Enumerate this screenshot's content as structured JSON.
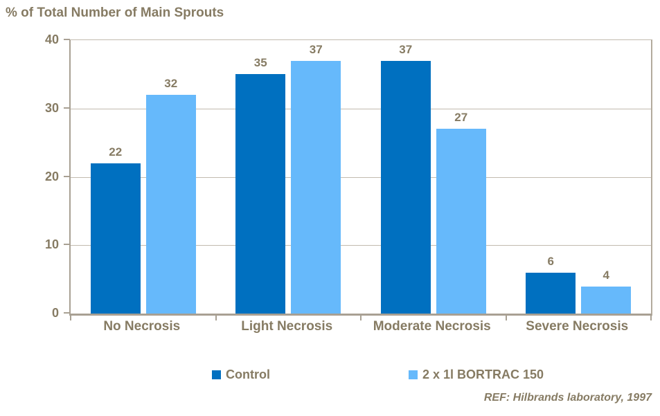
{
  "title": "% of Total Number of Main Sprouts",
  "footnote": "REF: Hilbrands laboratory, 1997",
  "colors": {
    "text": "#867B63",
    "axis": "#A8A093",
    "gridline": "#C2BAAE",
    "series_control": "#0070C0",
    "series_bortrac": "#66B9FB"
  },
  "chart_data": {
    "type": "bar",
    "title": "% of Total Number of Main Sprouts",
    "categories": [
      "No Necrosis",
      "Light Necrosis",
      "Moderate Necrosis",
      "Severe Necrosis"
    ],
    "series": [
      {
        "name": "Control",
        "color": "#0070C0",
        "values": [
          22,
          35,
          37,
          6
        ]
      },
      {
        "name": "2 x 1l BORTRAC 150",
        "color": "#66B9FB",
        "values": [
          32,
          37,
          27,
          4
        ]
      }
    ],
    "xlabel": "",
    "ylabel": "% of Total Number of Main Sprouts",
    "ylim": [
      0,
      40
    ],
    "yticks": [
      0,
      10,
      20,
      30,
      40
    ],
    "grid": true,
    "data_labels": true,
    "legend_position": "bottom",
    "annotation": "REF: Hilbrands laboratory, 1997"
  }
}
